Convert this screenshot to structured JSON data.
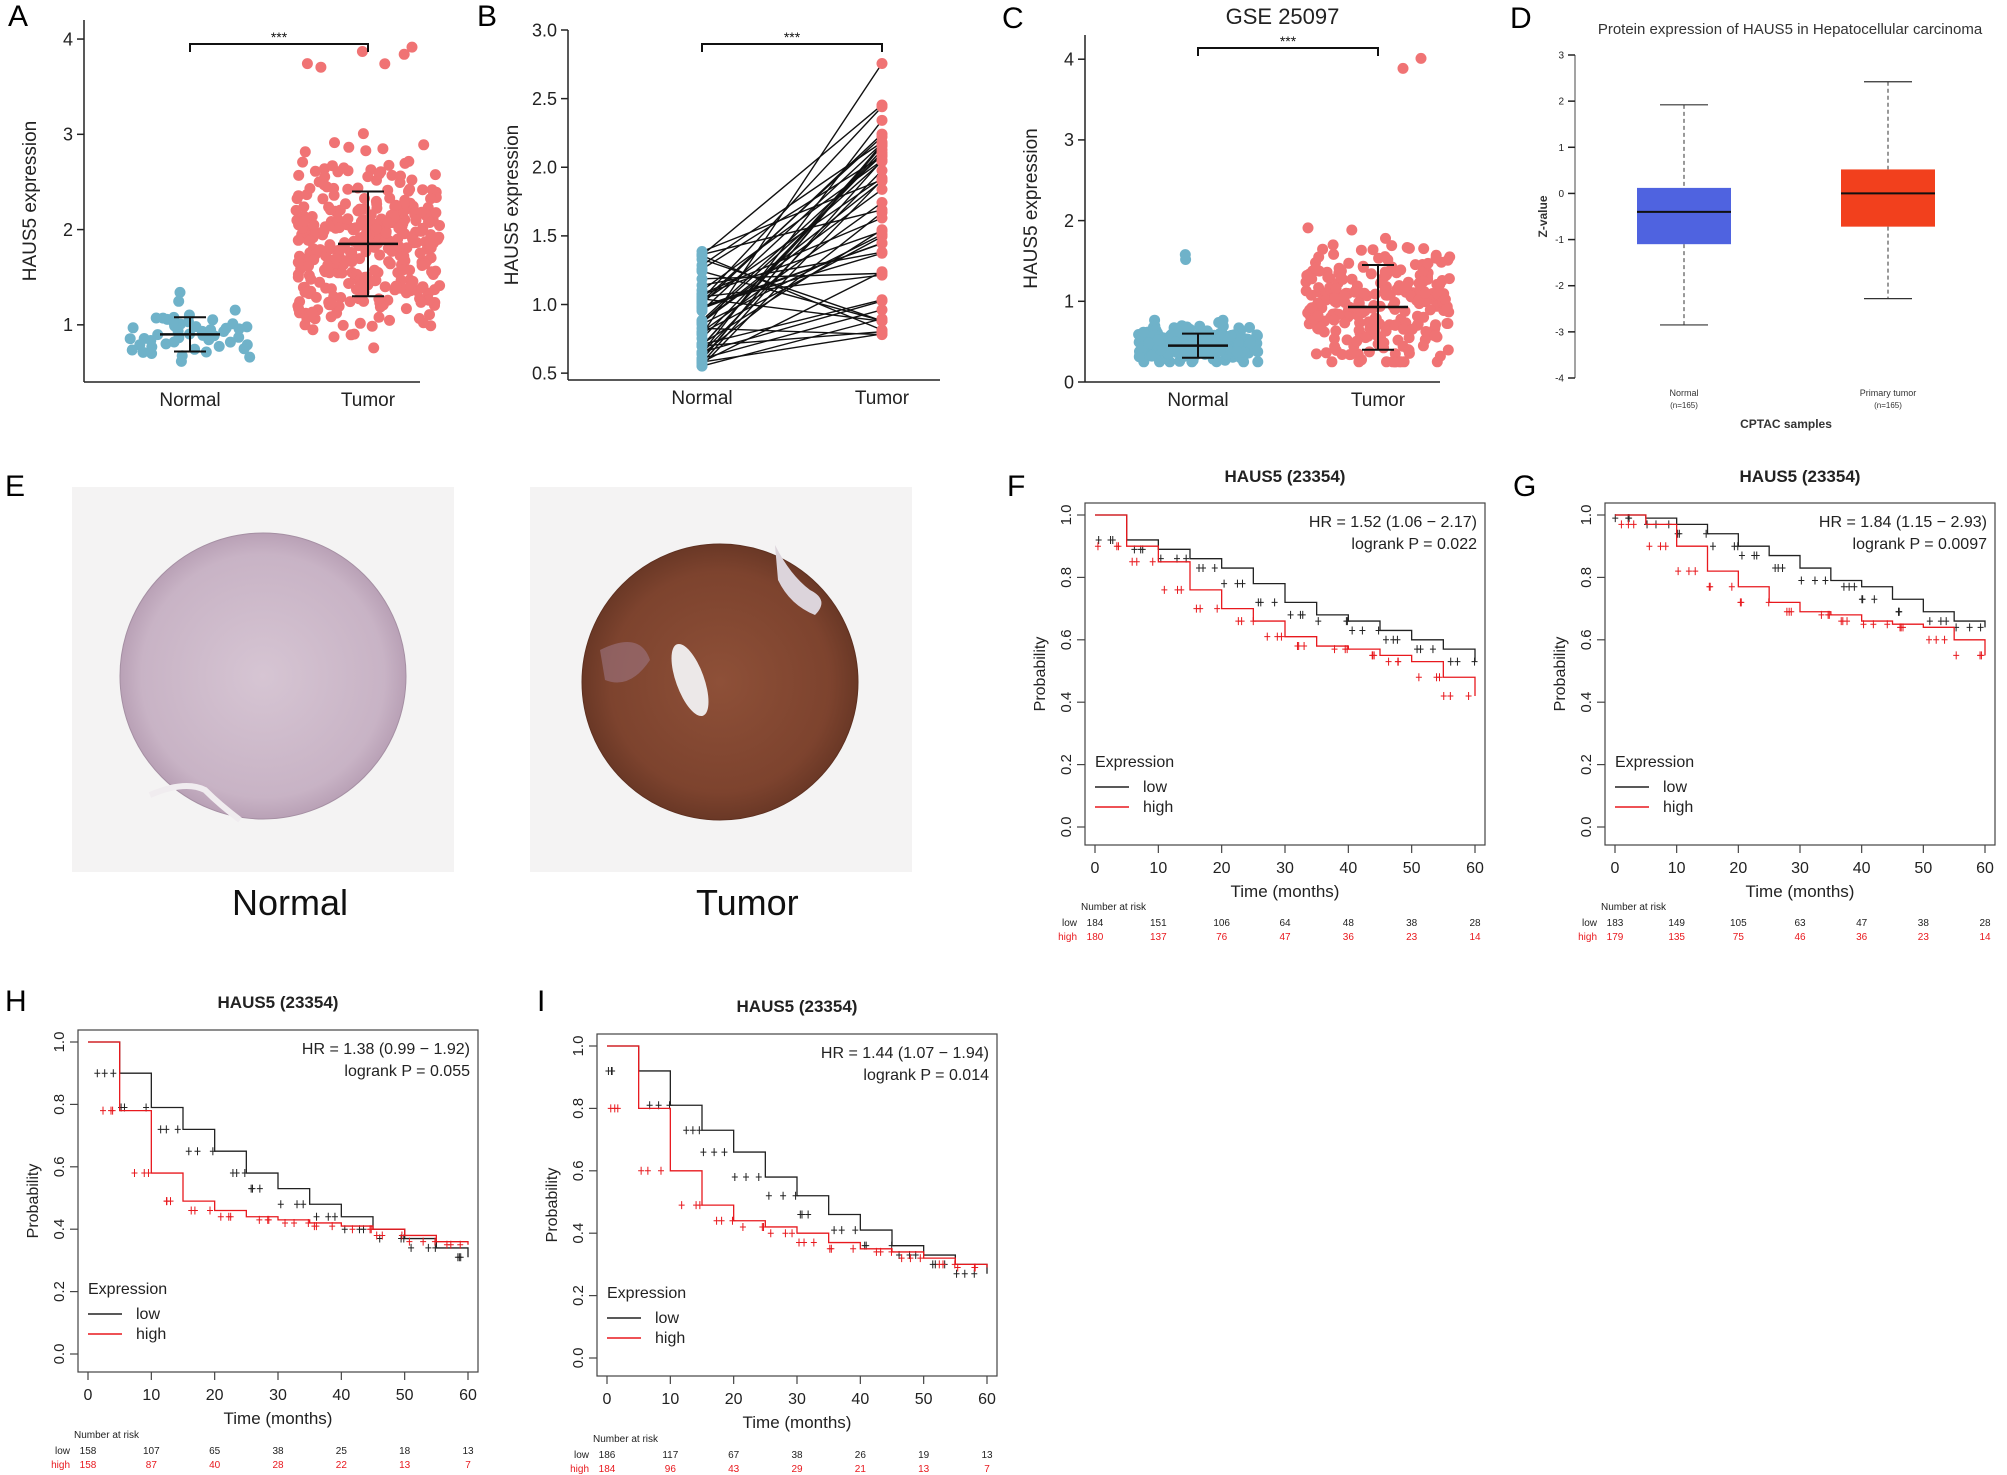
{
  "panels": [
    "A",
    "B",
    "C",
    "D",
    "E",
    "F",
    "G",
    "H",
    "I"
  ],
  "colors": {
    "normal_dot": "#6fb2c9",
    "tumor_dot": "#f07374",
    "box_normal": "#4f63e0",
    "box_tumor": "#f2401d",
    "km_low": "#222222",
    "km_high": "#e8191e"
  },
  "scatter_a": {
    "type": "scatter",
    "categories": [
      "Normal",
      "Tumor"
    ],
    "ylabel": "HAUS5 expression",
    "ylim": [
      0.4,
      4.2
    ],
    "yticks": [
      "1",
      "2",
      "3",
      "4"
    ],
    "significance": "***",
    "groups": [
      {
        "name": "Normal",
        "mean": 0.9,
        "sd_low": 0.72,
        "sd_high": 1.08,
        "min": 0.55,
        "max": 1.42,
        "n": 50
      },
      {
        "name": "Tumor",
        "mean": 1.85,
        "sd_low": 1.3,
        "sd_high": 2.4,
        "min": 0.72,
        "max": 3.95,
        "n": 370
      }
    ]
  },
  "paired_b": {
    "type": "line",
    "categories": [
      "Normal",
      "Tumor"
    ],
    "ylabel": "HAUS5 expression",
    "ylim": [
      0.45,
      3.0
    ],
    "yticks": [
      "0.5",
      "1.0",
      "1.5",
      "2.0",
      "2.5",
      "3.0"
    ],
    "significance": "***",
    "n_pairs": 50
  },
  "scatter_c": {
    "type": "scatter",
    "title": "GSE 25097",
    "categories": [
      "Normal",
      "Tumor"
    ],
    "ylabel": "HAUS5 expression",
    "ylim": [
      0,
      4.3
    ],
    "yticks": [
      "0",
      "1",
      "2",
      "3",
      "4"
    ],
    "significance": "***",
    "groups": [
      {
        "name": "Normal",
        "mean": 0.45,
        "sd_low": 0.3,
        "sd_high": 0.6,
        "min": 0.25,
        "max": 1.65,
        "n": 240
      },
      {
        "name": "Tumor",
        "mean": 0.93,
        "sd_low": 0.4,
        "sd_high": 1.45,
        "min": 0.25,
        "max": 4.08,
        "n": 268
      }
    ]
  },
  "box_d": {
    "type": "box",
    "title": "Protein expression of HAUS5 in Hepatocellular carcinoma",
    "ylabel": "Z-value",
    "xlabel": "CPTAC samples",
    "ylim": [
      -4,
      3
    ],
    "yticks": [
      "-4",
      "-3",
      "-2",
      "-1",
      "0",
      "1",
      "2",
      "3"
    ],
    "boxes": [
      {
        "name": "Normal",
        "n_label": "(n=165)",
        "min": -2.85,
        "q1": -1.1,
        "median": -0.4,
        "q3": 0.12,
        "max": 1.92
      },
      {
        "name": "Primary tumor",
        "n_label": "(n=165)",
        "min": -2.28,
        "q1": -0.72,
        "median": 0.0,
        "q3": 0.52,
        "max": 2.42
      }
    ]
  },
  "tma_e": {
    "captions": [
      "Normal",
      "Tumor"
    ]
  },
  "km_common": {
    "ylabel": "Probability",
    "xlabel": "Time (months)",
    "xticks": [
      "0",
      "10",
      "20",
      "30",
      "40",
      "50",
      "60"
    ],
    "yticks": [
      "0.0",
      "0.2",
      "0.4",
      "0.6",
      "0.8",
      "1.0"
    ],
    "legend_title": "Expression",
    "legend_low": "low",
    "legend_high": "high",
    "risk_title": "Number at risk",
    "risk_low_label": "low",
    "risk_high_label": "high"
  },
  "km": [
    {
      "letter": "F",
      "title": "HAUS5 (23354)",
      "hr": "HR = 1.52 (1.06 − 2.17)",
      "logrank": "logrank P = 0.022",
      "low": [
        [
          0,
          1.0
        ],
        [
          5,
          0.92
        ],
        [
          10,
          0.89
        ],
        [
          15,
          0.86
        ],
        [
          20,
          0.83
        ],
        [
          25,
          0.78
        ],
        [
          30,
          0.72
        ],
        [
          35,
          0.68
        ],
        [
          40,
          0.66
        ],
        [
          45,
          0.63
        ],
        [
          50,
          0.6
        ],
        [
          55,
          0.57
        ],
        [
          60,
          0.53
        ]
      ],
      "high": [
        [
          0,
          1.0
        ],
        [
          5,
          0.9
        ],
        [
          10,
          0.85
        ],
        [
          15,
          0.76
        ],
        [
          20,
          0.7
        ],
        [
          25,
          0.66
        ],
        [
          30,
          0.61
        ],
        [
          35,
          0.58
        ],
        [
          40,
          0.57
        ],
        [
          45,
          0.55
        ],
        [
          50,
          0.53
        ],
        [
          55,
          0.48
        ],
        [
          60,
          0.42
        ]
      ],
      "risk_low": [
        "184",
        "151",
        "106",
        "64",
        "48",
        "38",
        "28"
      ],
      "risk_high": [
        "180",
        "137",
        "76",
        "47",
        "36",
        "23",
        "14"
      ]
    },
    {
      "letter": "G",
      "title": "HAUS5 (23354)",
      "hr": "HR = 1.84 (1.15 − 2.93)",
      "logrank": "logrank P = 0.0097",
      "low": [
        [
          0,
          1.0
        ],
        [
          5,
          0.99
        ],
        [
          10,
          0.97
        ],
        [
          15,
          0.94
        ],
        [
          20,
          0.9
        ],
        [
          25,
          0.87
        ],
        [
          30,
          0.83
        ],
        [
          35,
          0.79
        ],
        [
          40,
          0.77
        ],
        [
          45,
          0.73
        ],
        [
          50,
          0.69
        ],
        [
          55,
          0.66
        ],
        [
          60,
          0.64
        ]
      ],
      "high": [
        [
          0,
          1.0
        ],
        [
          5,
          0.97
        ],
        [
          10,
          0.9
        ],
        [
          15,
          0.82
        ],
        [
          20,
          0.77
        ],
        [
          25,
          0.72
        ],
        [
          30,
          0.69
        ],
        [
          35,
          0.68
        ],
        [
          40,
          0.66
        ],
        [
          45,
          0.65
        ],
        [
          50,
          0.64
        ],
        [
          55,
          0.6
        ],
        [
          60,
          0.55
        ]
      ],
      "risk_low": [
        "183",
        "149",
        "105",
        "63",
        "47",
        "38",
        "28"
      ],
      "risk_high": [
        "179",
        "135",
        "75",
        "46",
        "36",
        "23",
        "14"
      ]
    },
    {
      "letter": "H",
      "title": "HAUS5 (23354)",
      "hr": "HR = 1.38 (0.99 − 1.92)",
      "logrank": "logrank P = 0.055",
      "low": [
        [
          0,
          1.0
        ],
        [
          5,
          0.9
        ],
        [
          10,
          0.79
        ],
        [
          15,
          0.72
        ],
        [
          20,
          0.65
        ],
        [
          25,
          0.58
        ],
        [
          30,
          0.53
        ],
        [
          35,
          0.48
        ],
        [
          40,
          0.44
        ],
        [
          45,
          0.4
        ],
        [
          50,
          0.37
        ],
        [
          55,
          0.34
        ],
        [
          60,
          0.31
        ]
      ],
      "high": [
        [
          0,
          1.0
        ],
        [
          5,
          0.78
        ],
        [
          10,
          0.58
        ],
        [
          15,
          0.49
        ],
        [
          20,
          0.46
        ],
        [
          25,
          0.44
        ],
        [
          30,
          0.43
        ],
        [
          35,
          0.42
        ],
        [
          40,
          0.41
        ],
        [
          45,
          0.4
        ],
        [
          50,
          0.38
        ],
        [
          55,
          0.36
        ],
        [
          60,
          0.35
        ]
      ],
      "risk_low": [
        "158",
        "107",
        "65",
        "38",
        "25",
        "18",
        "13"
      ],
      "risk_high": [
        "158",
        "87",
        "40",
        "28",
        "22",
        "13",
        "7"
      ]
    },
    {
      "letter": "I",
      "title": "HAUS5 (23354)",
      "hr": "HR = 1.44 (1.07 − 1.94)",
      "logrank": "logrank P = 0.014",
      "low": [
        [
          0,
          1.0
        ],
        [
          5,
          0.92
        ],
        [
          10,
          0.81
        ],
        [
          15,
          0.73
        ],
        [
          20,
          0.66
        ],
        [
          25,
          0.58
        ],
        [
          30,
          0.52
        ],
        [
          35,
          0.46
        ],
        [
          40,
          0.41
        ],
        [
          45,
          0.36
        ],
        [
          50,
          0.33
        ],
        [
          55,
          0.3
        ],
        [
          60,
          0.27
        ]
      ],
      "high": [
        [
          0,
          1.0
        ],
        [
          5,
          0.8
        ],
        [
          10,
          0.6
        ],
        [
          15,
          0.49
        ],
        [
          20,
          0.44
        ],
        [
          25,
          0.42
        ],
        [
          30,
          0.4
        ],
        [
          35,
          0.37
        ],
        [
          40,
          0.35
        ],
        [
          45,
          0.34
        ],
        [
          50,
          0.32
        ],
        [
          55,
          0.3
        ],
        [
          60,
          0.29
        ]
      ],
      "risk_low": [
        "186",
        "117",
        "67",
        "38",
        "26",
        "19",
        "13"
      ],
      "risk_high": [
        "184",
        "96",
        "43",
        "29",
        "21",
        "13",
        "7"
      ]
    }
  ]
}
